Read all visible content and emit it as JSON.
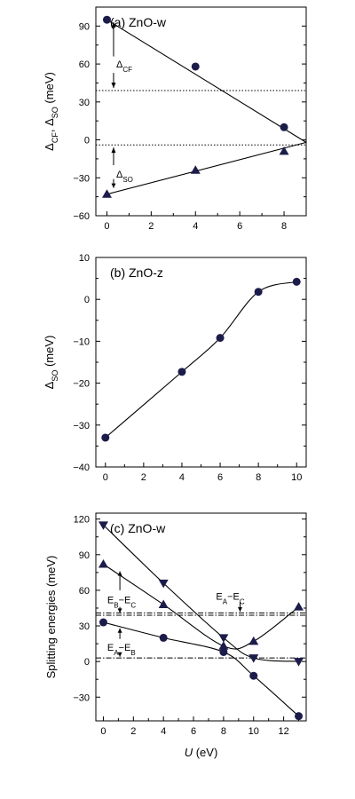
{
  "chart_data": [
    {
      "type": "scatter",
      "panel": "(a) ZnO-w",
      "title": "(a) ZnO-w",
      "xlabel": "",
      "ylabel": "Δ_CF, Δ_SO (meV)",
      "ylabel_parts": [
        "Δ",
        "CF",
        ", Δ",
        "SO",
        " (meV)"
      ],
      "xlim": [
        -0.5,
        9.0
      ],
      "ylim": [
        -60,
        105
      ],
      "xticks": [
        "0",
        "2",
        "4",
        "6",
        "8"
      ],
      "yticks": [
        "−60",
        "−30",
        "0",
        "30",
        "60",
        "90"
      ],
      "series": [
        {
          "name": "Δ_CF",
          "marker": "circle",
          "x": [
            0,
            4,
            8
          ],
          "y": [
            95,
            58,
            10
          ],
          "fit": [
            [
              0,
              95
            ],
            [
              9,
              -2
            ]
          ]
        },
        {
          "name": "Δ_SO",
          "marker": "triangle-up",
          "x": [
            0,
            4,
            8
          ],
          "y": [
            -43,
            -24,
            -9
          ],
          "fit": [
            [
              0,
              -43
            ],
            [
              9,
              -2
            ]
          ]
        }
      ],
      "hlines": [
        39,
        -4
      ],
      "annotations": [
        {
          "text_main": "Δ",
          "text_sub": "CF",
          "x": 0.3,
          "y": 60
        },
        {
          "text_main": "Δ",
          "text_sub": "SO",
          "x": 0.3,
          "y": -27
        }
      ]
    },
    {
      "type": "line",
      "panel": "(b) ZnO-z",
      "title": "(b) ZnO-z",
      "xlabel": "",
      "ylabel": "Δ_SO (meV)",
      "ylabel_parts": [
        "Δ",
        "SO",
        " (meV)"
      ],
      "xlim": [
        -0.5,
        10.5
      ],
      "ylim": [
        -40,
        10
      ],
      "xticks": [
        "0",
        "2",
        "4",
        "6",
        "8",
        "10"
      ],
      "yticks": [
        "−40",
        "−30",
        "−20",
        "−10",
        "0",
        "10"
      ],
      "series": [
        {
          "name": "",
          "marker": "circle",
          "x": [
            0,
            4,
            6,
            8,
            10
          ],
          "y": [
            -33,
            -17.3,
            -9.2,
            1.8,
            4.2
          ]
        }
      ]
    },
    {
      "type": "line",
      "panel": "(c) ZnO-w",
      "title": "(c) ZnO-w",
      "xlabel": "U (eV)",
      "xlabel_parts": [
        "U",
        " (eV)"
      ],
      "ylabel": "Splitting energies (meV)",
      "xlim": [
        -0.5,
        13.5
      ],
      "ylim": [
        -50,
        125
      ],
      "xticks": [
        "0",
        "2",
        "4",
        "6",
        "8",
        "10",
        "12"
      ],
      "yticks": [
        "−30",
        "0",
        "30",
        "60",
        "90",
        "120"
      ],
      "series": [
        {
          "name": "E_A−E_C",
          "marker": "triangle-down",
          "x": [
            0,
            4,
            8,
            10,
            13
          ],
          "y": [
            115,
            66,
            20,
            3,
            0
          ]
        },
        {
          "name": "E_B−E_C",
          "marker": "triangle-up",
          "x": [
            0,
            4,
            8,
            10,
            13
          ],
          "y": [
            82,
            48,
            13,
            17,
            46
          ]
        },
        {
          "name": "E_A−E_B",
          "marker": "circle",
          "x": [
            0,
            4,
            8,
            10,
            13
          ],
          "y": [
            33,
            20,
            8,
            -12,
            -46
          ]
        }
      ],
      "hlines": [
        41,
        39,
        3
      ],
      "annotations": [
        {
          "text_parts": [
            "E",
            "A",
            "−E",
            "C"
          ],
          "x": 7.5,
          "y": 55
        },
        {
          "text_parts": [
            "E",
            "B",
            "−E",
            "C"
          ],
          "x": 0.5,
          "y": 52
        },
        {
          "text_parts": [
            "E",
            "A",
            "−E",
            "B"
          ],
          "x": 0.5,
          "y": 12
        }
      ]
    }
  ]
}
